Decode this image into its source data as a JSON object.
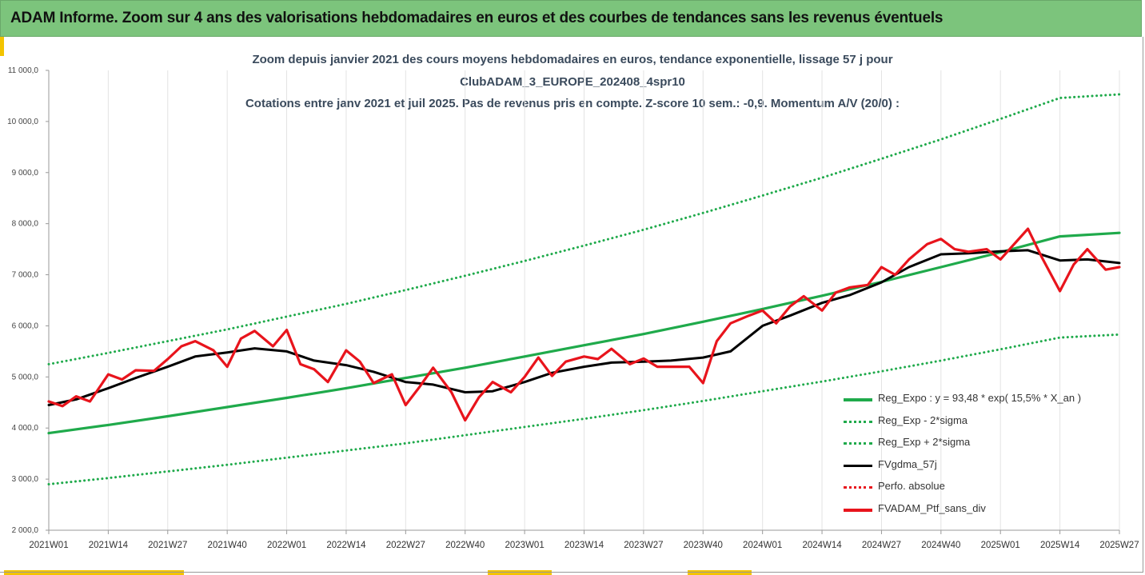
{
  "banner": {
    "title": "ADAM Informe. Zoom sur 4 ans des valorisations hebdomadaires en euros et des courbes de tendances sans les revenus éventuels"
  },
  "colors": {
    "banner": "#7cc47c",
    "accent": "#f3c400",
    "trend": "#1faa4b",
    "smooth": "#000000",
    "portfolio": "#e8141c"
  },
  "chart_data": {
    "type": "line",
    "title_lines": [
      "Zoom depuis janvier 2021 des cours moyens hebdomadaires  en euros, tendance exponentielle, lissage 57 j pour",
      "ClubADAM_3_EUROPE_202408_4spr10",
      "Cotations entre janv 2021 et juil 2025. Pas de revenus pris en compte. Z-score 10 sem.: -0,9. Momentum A/V (20/0) :"
    ],
    "ylim": [
      2000,
      11000
    ],
    "y_ticks": [
      "2 000,0",
      "3 000,0",
      "4 000,0",
      "5 000,0",
      "6 000,0",
      "7 000,0",
      "8 000,0",
      "9 000,0",
      "10 000,0",
      "11 000,0"
    ],
    "x_ticks": [
      "2021W01",
      "2021W14",
      "2021W27",
      "2021W40",
      "2022W01",
      "2022W14",
      "2022W27",
      "2022W40",
      "2023W01",
      "2023W14",
      "2023W27",
      "2023W40",
      "2024W01",
      "2024W14",
      "2024W27",
      "2024W40",
      "2025W01",
      "2025W14",
      "2025W27"
    ],
    "grid": "vertical",
    "legend_position": "bottom-right",
    "legend": [
      "Reg_Expo : y = 93,48 * exp( 15,5% *  X_an )",
      "Reg_Exp - 2*sigma",
      "Reg_Exp + 2*sigma",
      "FVgdma_57j",
      "Perfo. absolue",
      "FVADAM_Ptf_sans_div"
    ],
    "series": [
      {
        "name": "Reg_Expo : y = 93,48 * exp( 15,5% *  X_an )",
        "style": "solid-thick",
        "color": "#1faa4b",
        "x": [
          "2021W01",
          "2021W14",
          "2021W27",
          "2021W40",
          "2022W01",
          "2022W14",
          "2022W27",
          "2022W40",
          "2023W01",
          "2023W14",
          "2023W27",
          "2023W40",
          "2024W01",
          "2024W14",
          "2024W27",
          "2024W40",
          "2025W01",
          "2025W14",
          "2025W27"
        ],
        "values": [
          3900,
          4060,
          4230,
          4410,
          4590,
          4780,
          4980,
          5180,
          5400,
          5620,
          5840,
          6080,
          6330,
          6590,
          6860,
          7150,
          7440,
          7750,
          7820
        ]
      },
      {
        "name": "Reg_Exp - 2*sigma",
        "style": "dotted",
        "color": "#1faa4b",
        "x": [
          "2021W01",
          "2021W14",
          "2021W27",
          "2021W40",
          "2022W01",
          "2022W14",
          "2022W27",
          "2022W40",
          "2023W01",
          "2023W14",
          "2023W27",
          "2023W40",
          "2024W01",
          "2024W14",
          "2024W27",
          "2024W40",
          "2025W01",
          "2025W14",
          "2025W27"
        ],
        "values": [
          2900,
          3020,
          3150,
          3280,
          3420,
          3560,
          3700,
          3860,
          4020,
          4180,
          4350,
          4530,
          4720,
          4910,
          5110,
          5320,
          5540,
          5770,
          5830
        ]
      },
      {
        "name": "Reg_Exp + 2*sigma",
        "style": "dotted",
        "color": "#1faa4b",
        "x": [
          "2021W01",
          "2021W14",
          "2021W27",
          "2021W40",
          "2022W01",
          "2022W14",
          "2022W27",
          "2022W40",
          "2023W01",
          "2023W14",
          "2023W27",
          "2023W40",
          "2024W01",
          "2024W14",
          "2024W27",
          "2024W40",
          "2025W01",
          "2025W14",
          "2025W27"
        ],
        "values": [
          5250,
          5470,
          5700,
          5930,
          6180,
          6430,
          6700,
          6980,
          7270,
          7570,
          7880,
          8210,
          8550,
          8900,
          9270,
          9650,
          10050,
          10460,
          10530
        ]
      },
      {
        "name": "FVgdma_57j",
        "style": "solid",
        "color": "#000000",
        "x": [
          "2021W01",
          "2021W07",
          "2021W14",
          "2021W20",
          "2021W27",
          "2021W33",
          "2021W40",
          "2021W46",
          "2022W01",
          "2022W07",
          "2022W14",
          "2022W20",
          "2022W27",
          "2022W33",
          "2022W40",
          "2022W46",
          "2023W01",
          "2023W07",
          "2023W14",
          "2023W20",
          "2023W27",
          "2023W33",
          "2023W40",
          "2023W46",
          "2024W01",
          "2024W07",
          "2024W14",
          "2024W20",
          "2024W27",
          "2024W33",
          "2024W40",
          "2024W46",
          "2025W01",
          "2025W07",
          "2025W14",
          "2025W20",
          "2025W27"
        ],
        "values": [
          4450,
          4560,
          4780,
          4980,
          5200,
          5400,
          5480,
          5560,
          5500,
          5320,
          5230,
          5100,
          4900,
          4850,
          4700,
          4720,
          4900,
          5080,
          5200,
          5280,
          5300,
          5320,
          5380,
          5500,
          6000,
          6200,
          6450,
          6600,
          6850,
          7150,
          7400,
          7420,
          7460,
          7480,
          7280,
          7300,
          7230
        ]
      },
      {
        "name": "Perfo. absolue",
        "style": "dotted",
        "color": "#e8141c",
        "x": [],
        "values": []
      },
      {
        "name": "FVADAM_Ptf_sans_div",
        "style": "solid-thick",
        "color": "#e8141c",
        "x": [
          "2021W01",
          "2021W04",
          "2021W07",
          "2021W10",
          "2021W14",
          "2021W17",
          "2021W20",
          "2021W24",
          "2021W27",
          "2021W30",
          "2021W33",
          "2021W37",
          "2021W40",
          "2021W43",
          "2021W46",
          "2021W50",
          "2022W01",
          "2022W04",
          "2022W07",
          "2022W10",
          "2022W14",
          "2022W17",
          "2022W20",
          "2022W24",
          "2022W27",
          "2022W30",
          "2022W33",
          "2022W37",
          "2022W40",
          "2022W43",
          "2022W46",
          "2022W50",
          "2023W01",
          "2023W04",
          "2023W07",
          "2023W10",
          "2023W14",
          "2023W17",
          "2023W20",
          "2023W24",
          "2023W27",
          "2023W30",
          "2023W33",
          "2023W37",
          "2023W40",
          "2023W43",
          "2023W46",
          "2023W50",
          "2024W01",
          "2024W04",
          "2024W07",
          "2024W10",
          "2024W14",
          "2024W17",
          "2024W20",
          "2024W24",
          "2024W27",
          "2024W30",
          "2024W33",
          "2024W37",
          "2024W40",
          "2024W43",
          "2024W46",
          "2024W50",
          "2025W01",
          "2025W04",
          "2025W07",
          "2025W10",
          "2025W14",
          "2025W17",
          "2025W20",
          "2025W24",
          "2025W27"
        ],
        "values": [
          4520,
          4430,
          4620,
          4520,
          5050,
          4950,
          5130,
          5120,
          5350,
          5600,
          5700,
          5520,
          5200,
          5750,
          5900,
          5600,
          5920,
          5250,
          5150,
          4900,
          5520,
          5300,
          4880,
          5050,
          4450,
          4800,
          5180,
          4700,
          4150,
          4600,
          4900,
          4700,
          5000,
          5380,
          5020,
          5300,
          5400,
          5350,
          5550,
          5250,
          5360,
          5200,
          5200,
          5200,
          4880,
          5700,
          6050,
          6200,
          6300,
          6050,
          6380,
          6580,
          6300,
          6650,
          6750,
          6800,
          7150,
          7000,
          7300,
          7600,
          7700,
          7500,
          7450,
          7500,
          7300,
          7600,
          7900,
          7350,
          6680,
          7200,
          7500,
          7100,
          7150
        ]
      }
    ]
  }
}
